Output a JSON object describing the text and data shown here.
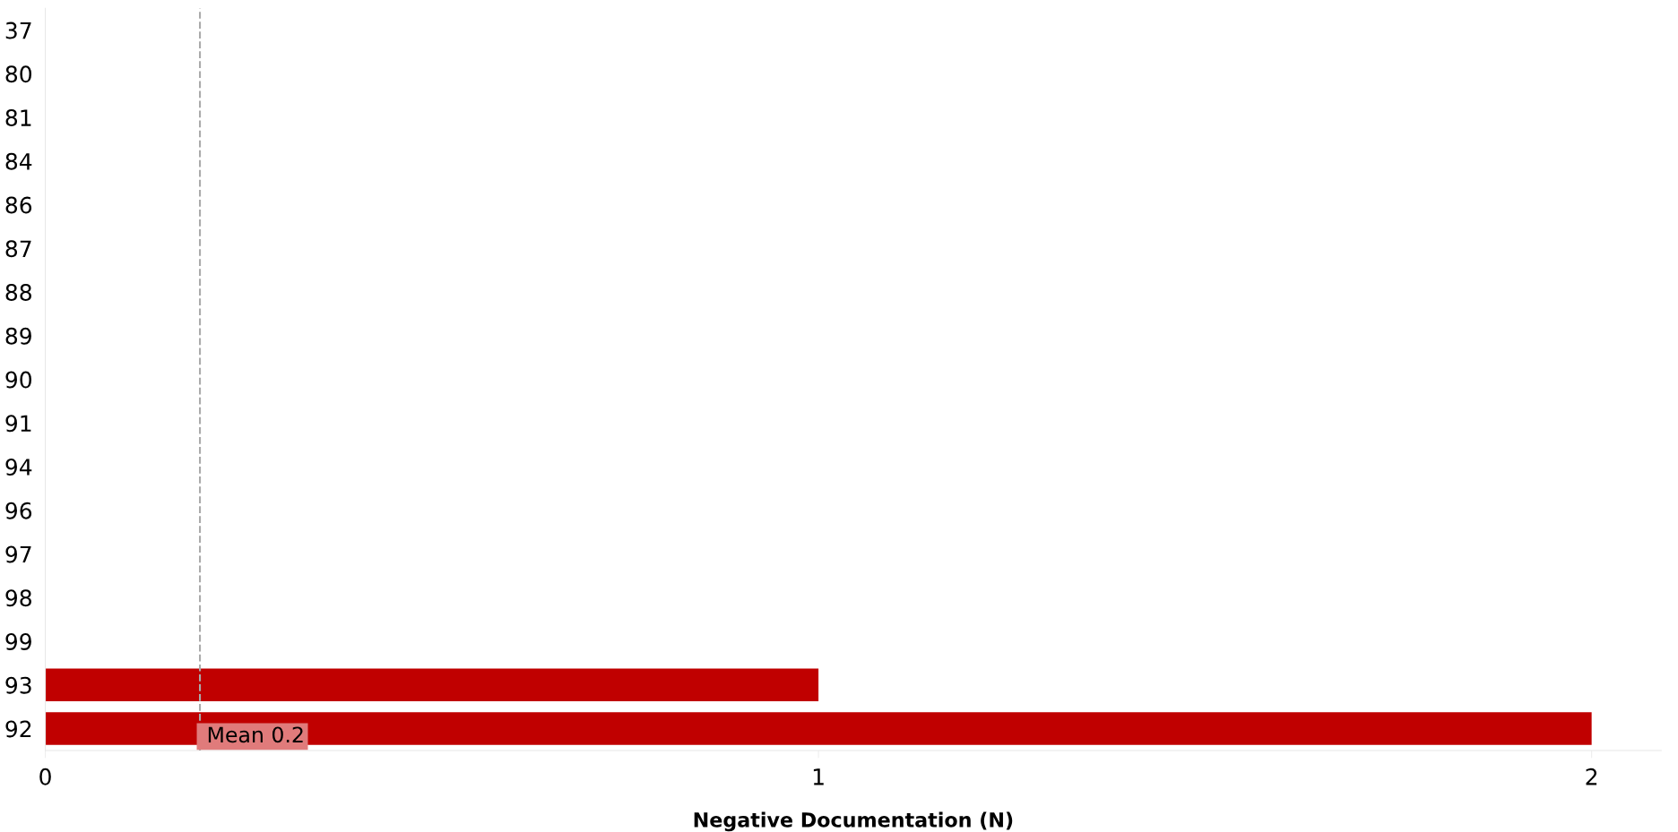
{
  "chart_data": {
    "type": "bar",
    "orientation": "horizontal",
    "categories": [
      "37",
      "80",
      "81",
      "84",
      "86",
      "87",
      "88",
      "89",
      "90",
      "91",
      "94",
      "96",
      "97",
      "98",
      "99",
      "93",
      "92"
    ],
    "values": [
      0,
      0,
      0,
      0,
      0,
      0,
      0,
      0,
      0,
      0,
      0,
      0,
      0,
      0,
      0,
      1,
      2
    ],
    "color": "#c00000",
    "xlabel": "Negative Documentation (N)",
    "xlim": [
      0,
      2.09
    ],
    "xticks": [
      0,
      1,
      2
    ],
    "ref_lines": [
      {
        "axis": "x",
        "value": 0.2,
        "label": "Mean 0.2",
        "color": "#aaaaaa",
        "line_style": "dashed"
      }
    ],
    "grid": false,
    "legend": false
  }
}
